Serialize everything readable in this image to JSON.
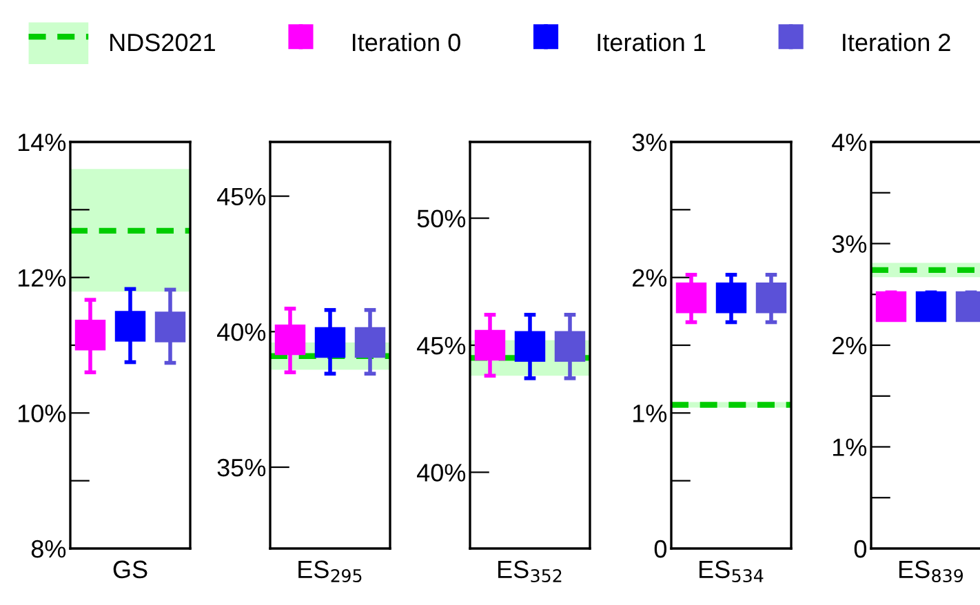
{
  "chart_data": [
    {
      "type": "scatter",
      "categories": [
        "GS"
      ],
      "marker": "square",
      "legend": "top",
      "grid": false,
      "ylim": [
        8,
        14
      ],
      "yticks": [
        {
          "value": 8,
          "label": "8%"
        },
        {
          "value": 9,
          "label": null
        },
        {
          "value": 10,
          "label": "10%"
        },
        {
          "value": 11,
          "label": null
        },
        {
          "value": 12,
          "label": "12%"
        },
        {
          "value": 13,
          "label": null
        },
        {
          "value": 14,
          "label": "14%"
        }
      ],
      "series": [
        {
          "name": "Iteration 0",
          "color": "#ff00ff",
          "values": [
            11.15
          ],
          "errors": [
            [
              10.6,
              11.67
            ]
          ]
        },
        {
          "name": "Iteration 1",
          "color": "#0000ff",
          "values": [
            11.28
          ],
          "errors": [
            [
              10.75,
              11.83
            ]
          ]
        },
        {
          "name": "Iteration 2",
          "color": "#5b51d8",
          "values": [
            11.27
          ],
          "errors": [
            [
              10.74,
              11.82
            ]
          ]
        }
      ],
      "ref_lines": [
        {
          "axis": "y",
          "value": 12.69,
          "label": "NDS2021",
          "color": "#00cc00",
          "line_style": "dashed"
        }
      ],
      "bands": [
        {
          "axis": "y",
          "from": 11.79,
          "to": 13.6,
          "color": "#ccffcc"
        }
      ]
    },
    {
      "type": "scatter",
      "categories": [
        "ES$_{295}$"
      ],
      "marker": "square",
      "grid": false,
      "ylim": [
        32,
        47
      ],
      "yticks": [
        {
          "value": 35,
          "label": "35%"
        },
        {
          "value": 40,
          "label": "40%"
        },
        {
          "value": 45,
          "label": "45%"
        }
      ],
      "series": [
        {
          "color": "#ff00ff",
          "values": [
            39.7
          ],
          "errors": [
            [
              38.5,
              40.85
            ]
          ]
        },
        {
          "color": "#0000ff",
          "values": [
            39.6
          ],
          "errors": [
            [
              38.45,
              40.8
            ]
          ]
        },
        {
          "color": "#5b51d8",
          "values": [
            39.6
          ],
          "errors": [
            [
              38.45,
              40.8
            ]
          ]
        }
      ],
      "ref_lines": [
        {
          "axis": "y",
          "value": 39.1,
          "color": "#00cc00",
          "line_style": "dashed"
        }
      ],
      "bands": [
        {
          "axis": "y",
          "from": 38.6,
          "to": 39.6,
          "color": "#ccffcc"
        }
      ]
    },
    {
      "type": "scatter",
      "categories": [
        "ES$_{352}$"
      ],
      "marker": "square",
      "grid": false,
      "ylim": [
        37,
        53
      ],
      "yticks": [
        {
          "value": 40,
          "label": "40%"
        },
        {
          "value": 45,
          "label": "45%"
        },
        {
          "value": 50,
          "label": "50%"
        }
      ],
      "series": [
        {
          "color": "#ff00ff",
          "values": [
            45.0
          ],
          "errors": [
            [
              43.8,
              46.2
            ]
          ]
        },
        {
          "color": "#0000ff",
          "values": [
            44.95
          ],
          "errors": [
            [
              43.7,
              46.2
            ]
          ]
        },
        {
          "color": "#5b51d8",
          "values": [
            44.95
          ],
          "errors": [
            [
              43.7,
              46.2
            ]
          ]
        }
      ],
      "ref_lines": [
        {
          "axis": "y",
          "value": 44.5,
          "color": "#00cc00",
          "line_style": "dashed"
        }
      ],
      "bands": [
        {
          "axis": "y",
          "from": 43.8,
          "to": 45.2,
          "color": "#ccffcc"
        }
      ]
    },
    {
      "type": "scatter",
      "categories": [
        "ES$_{534}$"
      ],
      "marker": "square",
      "grid": false,
      "ylim": [
        0,
        3
      ],
      "yticks": [
        {
          "value": 0,
          "label": "0"
        },
        {
          "value": 0.5,
          "label": null
        },
        {
          "value": 1,
          "label": "1%"
        },
        {
          "value": 1.5,
          "label": null
        },
        {
          "value": 2,
          "label": "2%"
        },
        {
          "value": 2.5,
          "label": null
        },
        {
          "value": 3,
          "label": "3%"
        }
      ],
      "series": [
        {
          "color": "#ff00ff",
          "values": [
            1.85
          ],
          "errors": [
            [
              1.67,
              2.02
            ]
          ]
        },
        {
          "color": "#0000ff",
          "values": [
            1.85
          ],
          "errors": [
            [
              1.67,
              2.02
            ]
          ]
        },
        {
          "color": "#5b51d8",
          "values": [
            1.85
          ],
          "errors": [
            [
              1.67,
              2.02
            ]
          ]
        }
      ],
      "ref_lines": [
        {
          "axis": "y",
          "value": 1.06,
          "color": "#00cc00",
          "line_style": "dashed"
        }
      ],
      "bands": [
        {
          "axis": "y",
          "from": 1.04,
          "to": 1.08,
          "color": "#ccffcc"
        }
      ]
    },
    {
      "type": "scatter",
      "categories": [
        "ES$_{839}$"
      ],
      "marker": "square",
      "grid": false,
      "ylim": [
        0,
        4
      ],
      "yticks": [
        {
          "value": 0,
          "label": "0"
        },
        {
          "value": 0.5,
          "label": null
        },
        {
          "value": 1,
          "label": "1%"
        },
        {
          "value": 1.5,
          "label": null
        },
        {
          "value": 2,
          "label": "2%"
        },
        {
          "value": 2.5,
          "label": null
        },
        {
          "value": 3,
          "label": "3%"
        },
        {
          "value": 3.5,
          "label": null
        },
        {
          "value": 4,
          "label": "4%"
        }
      ],
      "series": [
        {
          "color": "#ff00ff",
          "values": [
            2.38
          ],
          "errors": [
            [
              2.26,
              2.52
            ]
          ]
        },
        {
          "color": "#0000ff",
          "values": [
            2.38
          ],
          "errors": [
            [
              2.26,
              2.52
            ]
          ]
        },
        {
          "color": "#5b51d8",
          "values": [
            2.38
          ],
          "errors": [
            [
              2.26,
              2.52
            ]
          ]
        }
      ],
      "ref_lines": [
        {
          "axis": "y",
          "value": 2.74,
          "color": "#00cc00",
          "line_style": "dashed"
        }
      ],
      "bands": [
        {
          "axis": "y",
          "from": 2.67,
          "to": 2.81,
          "color": "#ccffcc"
        }
      ]
    }
  ]
}
